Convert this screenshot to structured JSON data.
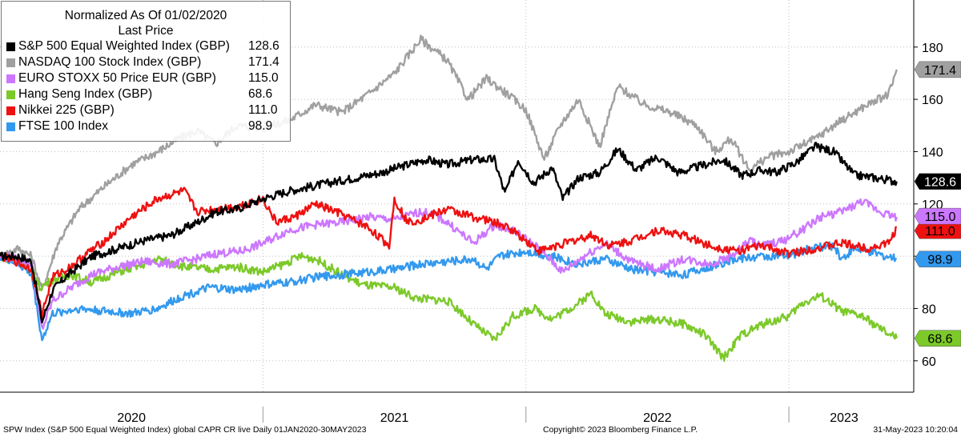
{
  "chart_data": {
    "type": "line",
    "legend": {
      "title": "Normalized As Of 01/02/2020",
      "subtitle": "Last Price",
      "placement": "top-left"
    },
    "x_labels": [
      "2020",
      "2021",
      "2022",
      "2023"
    ],
    "ylim": [
      48,
      198
    ],
    "y_ticks": [
      60,
      80,
      100,
      120,
      140,
      160,
      180
    ],
    "y_tick_labels": [
      "60",
      "80",
      "",
      "120",
      "140",
      "160",
      "180"
    ],
    "grid": "dotted, horizontal and vertical",
    "series": [
      {
        "name": "S&P 500 Equal Weighted Index (GBP)",
        "last": 128.6,
        "last_label": "128.6",
        "color": "#000000",
        "x": [
          2020.0,
          2020.07,
          2020.12,
          2020.16,
          2020.2,
          2020.26,
          2020.35,
          2020.45,
          2020.55,
          2020.65,
          2020.75,
          2020.82,
          2020.9,
          2021.0,
          2021.1,
          2021.2,
          2021.35,
          2021.45,
          2021.55,
          2021.62,
          2021.7,
          2021.8,
          2021.88,
          2021.92,
          2021.97,
          2022.03,
          2022.1,
          2022.14,
          2022.2,
          2022.28,
          2022.35,
          2022.42,
          2022.5,
          2022.58,
          2022.68,
          2022.75,
          2022.82,
          2022.9,
          2022.95,
          2023.03,
          2023.1,
          2023.17,
          2023.25,
          2023.33,
          2023.41
        ],
        "y": [
          100,
          100,
          98,
          75,
          87,
          93,
          100,
          103,
          106,
          108,
          113,
          117,
          118,
          122,
          125,
          127,
          130,
          132,
          135,
          137,
          135,
          137,
          137,
          124,
          137,
          128,
          134,
          122,
          130,
          132,
          141,
          133,
          138,
          132,
          135,
          137,
          131,
          133,
          132,
          136,
          142,
          140,
          131,
          130,
          128.6
        ]
      },
      {
        "name": "NASDAQ 100 Stock Index (GBP)",
        "last": 171.4,
        "last_label": "171.4",
        "color": "#a0a0a0",
        "x": [
          2020.0,
          2020.07,
          2020.12,
          2020.16,
          2020.22,
          2020.3,
          2020.4,
          2020.5,
          2020.6,
          2020.68,
          2020.75,
          2020.82,
          2020.9,
          2021.0,
          2021.1,
          2021.2,
          2021.3,
          2021.4,
          2021.5,
          2021.6,
          2021.7,
          2021.78,
          2021.85,
          2021.93,
          2022.0,
          2022.07,
          2022.13,
          2022.2,
          2022.28,
          2022.35,
          2022.45,
          2022.55,
          2022.65,
          2022.72,
          2022.78,
          2022.85,
          2022.92,
          2023.0,
          2023.1,
          2023.2,
          2023.3,
          2023.38,
          2023.41
        ],
        "y": [
          100,
          103,
          100,
          87,
          105,
          118,
          127,
          135,
          140,
          145,
          148,
          143,
          150,
          149,
          152,
          158,
          155,
          162,
          170,
          183,
          175,
          160,
          168,
          162,
          156,
          137,
          150,
          160,
          142,
          165,
          158,
          155,
          150,
          140,
          145,
          133,
          138,
          140,
          145,
          152,
          158,
          162,
          171.4
        ]
      },
      {
        "name": "EURO STOXX 50 Price EUR (GBP)",
        "last": 115.0,
        "last_label": "115.0",
        "color": "#cc77ff",
        "x": [
          2020.0,
          2020.07,
          2020.12,
          2020.16,
          2020.2,
          2020.27,
          2020.35,
          2020.45,
          2020.55,
          2020.65,
          2020.75,
          2020.82,
          2020.92,
          2021.0,
          2021.1,
          2021.2,
          2021.3,
          2021.4,
          2021.5,
          2021.6,
          2021.65,
          2021.7,
          2021.8,
          2021.88,
          2021.95,
          2022.05,
          2022.14,
          2022.22,
          2022.3,
          2022.4,
          2022.5,
          2022.6,
          2022.7,
          2022.78,
          2022.85,
          2022.9,
          2022.98,
          2023.05,
          2023.12,
          2023.2,
          2023.28,
          2023.35,
          2023.41
        ],
        "y": [
          100,
          99,
          97,
          72,
          83,
          88,
          93,
          96,
          98,
          97,
          99,
          101,
          102,
          105,
          110,
          112,
          113,
          115,
          114,
          117,
          116,
          113,
          105,
          112,
          110,
          103,
          94,
          100,
          105,
          98,
          95,
          99,
          97,
          100,
          106,
          104,
          106,
          110,
          115,
          117,
          121,
          117,
          115
        ]
      },
      {
        "name": "Hang Seng Index (GBP)",
        "last": 68.6,
        "last_label": "68.6",
        "color": "#7cc92a",
        "x": [
          2020.0,
          2020.07,
          2020.12,
          2020.15,
          2020.2,
          2020.27,
          2020.35,
          2020.45,
          2020.55,
          2020.6,
          2020.7,
          2020.8,
          2020.9,
          2021.0,
          2021.08,
          2021.14,
          2021.2,
          2021.3,
          2021.38,
          2021.5,
          2021.58,
          2021.7,
          2021.75,
          2021.8,
          2021.88,
          2021.95,
          2022.03,
          2022.1,
          2022.2,
          2022.25,
          2022.3,
          2022.4,
          2022.5,
          2022.6,
          2022.68,
          2022.75,
          2022.82,
          2022.9,
          2023.0,
          2023.05,
          2023.12,
          2023.2,
          2023.28,
          2023.35,
          2023.41
        ],
        "y": [
          100,
          98,
          96,
          88,
          91,
          93,
          90,
          94,
          97,
          99,
          96,
          95,
          96,
          94,
          97,
          100,
          99,
          93,
          89,
          88,
          84,
          83,
          79,
          74,
          68,
          77,
          80,
          76,
          82,
          86,
          78,
          75,
          76,
          74,
          70,
          61,
          70,
          74,
          77,
          82,
          85,
          79,
          77,
          72,
          68.6
        ]
      },
      {
        "name": "Nikkei 225 (GBP)",
        "last": 111.0,
        "last_label": "111.0",
        "color": "#ee1111",
        "x": [
          2020.0,
          2020.06,
          2020.12,
          2020.16,
          2020.2,
          2020.27,
          2020.33,
          2020.4,
          2020.5,
          2020.6,
          2020.7,
          2020.75,
          2020.82,
          2020.9,
          2021.0,
          2021.05,
          2021.12,
          2021.2,
          2021.3,
          2021.4,
          2021.48,
          2021.5,
          2021.55,
          2021.6,
          2021.7,
          2021.8,
          2021.88,
          2021.95,
          2022.05,
          2022.15,
          2022.25,
          2022.32,
          2022.4,
          2022.5,
          2022.6,
          2022.7,
          2022.8,
          2022.9,
          2023.0,
          2023.1,
          2023.2,
          2023.3,
          2023.38,
          2023.41
        ],
        "y": [
          100,
          98,
          95,
          78,
          92,
          96,
          101,
          106,
          115,
          122,
          125,
          117,
          118,
          119,
          122,
          113,
          115,
          120,
          116,
          111,
          104,
          122,
          113,
          114,
          118,
          115,
          113,
          110,
          102,
          105,
          108,
          104,
          106,
          110,
          108,
          104,
          102,
          104,
          101,
          103,
          105,
          103,
          105,
          111
        ]
      },
      {
        "name": "FTSE 100 Index",
        "last": 98.9,
        "last_label": "98.9",
        "color": "#3399ee",
        "x": [
          2020.0,
          2020.07,
          2020.12,
          2020.16,
          2020.2,
          2020.3,
          2020.4,
          2020.5,
          2020.6,
          2020.7,
          2020.8,
          2020.9,
          2021.0,
          2021.1,
          2021.2,
          2021.3,
          2021.4,
          2021.5,
          2021.6,
          2021.7,
          2021.8,
          2021.85,
          2021.9,
          2022.0,
          2022.1,
          2022.2,
          2022.3,
          2022.4,
          2022.5,
          2022.6,
          2022.7,
          2022.8,
          2022.9,
          2023.0,
          2023.08,
          2023.17,
          2023.2,
          2023.25,
          2023.33,
          2023.41
        ],
        "y": [
          100,
          97,
          93,
          68,
          78,
          80,
          79,
          78,
          80,
          85,
          88,
          87,
          89,
          90,
          92,
          93,
          94,
          95,
          97,
          98,
          99,
          95,
          100,
          102,
          100,
          97,
          99,
          95,
          94,
          93,
          96,
          99,
          100,
          100,
          103,
          104,
          99,
          103,
          101,
          98.9
        ]
      }
    ]
  },
  "footer": {
    "left": "SPW Index (S&P 500 Equal Weighted Index) global CAPR CR live  Daily 01JAN2020-30MAY2023",
    "center": "Copyright© 2023 Bloomberg Finance L.P.",
    "right": "31-May-2023 10:20:04"
  }
}
